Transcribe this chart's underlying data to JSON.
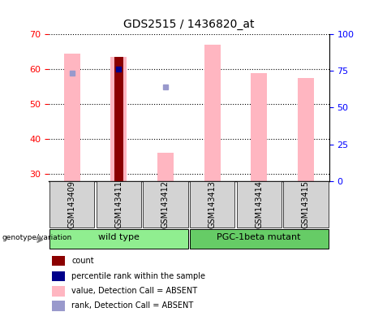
{
  "title": "GDS2515 / 1436820_at",
  "samples": [
    "GSM143409",
    "GSM143411",
    "GSM143412",
    "GSM143413",
    "GSM143414",
    "GSM143415"
  ],
  "wild_type": [
    "GSM143409",
    "GSM143411",
    "GSM143412"
  ],
  "pgc_mutant": [
    "GSM143413",
    "GSM143414",
    "GSM143415"
  ],
  "ylim_left": [
    28,
    70
  ],
  "ylim_right": [
    0,
    100
  ],
  "yticks_left": [
    30,
    40,
    50,
    60,
    70
  ],
  "yticks_right": [
    0,
    25,
    50,
    75,
    100
  ],
  "pink_bars": {
    "GSM143409": 64.5,
    "GSM143411": 63.5,
    "GSM143412": 36.0,
    "GSM143413": 67.0,
    "GSM143414": 59.0,
    "GSM143415": 57.5
  },
  "dark_red_bars": {
    "GSM143411": 63.5
  },
  "blue_squares": {
    "GSM143411": 60.0
  },
  "light_blue_squares": {
    "GSM143409": 59.0,
    "GSM143412": 55.0
  },
  "bar_bottom": 28,
  "pink_color": "#FFB6C1",
  "dark_red_color": "#8B0000",
  "blue_color": "#00008B",
  "light_blue_color": "#9999CC",
  "wild_type_color": "#90EE90",
  "pgc_color": "#66CC66",
  "label_bg_color": "#D3D3D3",
  "legend_items": [
    {
      "label": "count",
      "color": "#8B0000"
    },
    {
      "label": "percentile rank within the sample",
      "color": "#00008B"
    },
    {
      "label": "value, Detection Call = ABSENT",
      "color": "#FFB6C1"
    },
    {
      "label": "rank, Detection Call = ABSENT",
      "color": "#9999CC"
    }
  ]
}
